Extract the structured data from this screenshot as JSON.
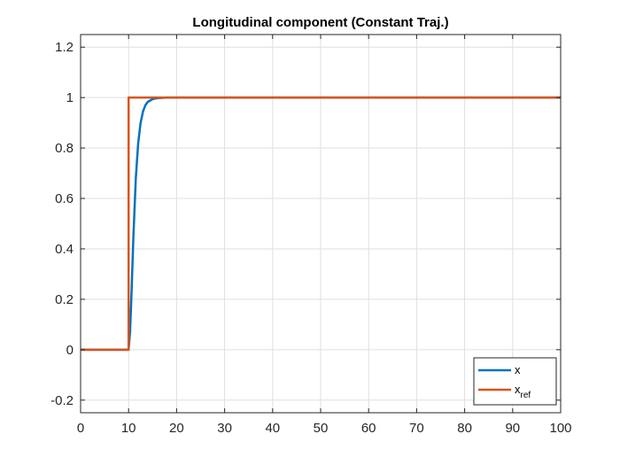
{
  "chart_data": {
    "type": "line",
    "title": "Longitudinal component (Constant Traj.)",
    "xlabel": "",
    "ylabel": "",
    "xlim": [
      0,
      100
    ],
    "ylim": [
      -0.25,
      1.25
    ],
    "x_ticks": [
      "0",
      "10",
      "20",
      "30",
      "40",
      "50",
      "60",
      "70",
      "80",
      "90",
      "100"
    ],
    "y_ticks": [
      "-0.2",
      "0",
      "0.2",
      "0.4",
      "0.6",
      "0.8",
      "1",
      "1.2"
    ],
    "x_tick_values": [
      0,
      10,
      20,
      30,
      40,
      50,
      60,
      70,
      80,
      90,
      100
    ],
    "y_tick_values": [
      -0.2,
      0,
      0.2,
      0.4,
      0.6,
      0.8,
      1,
      1.2
    ],
    "grid": true,
    "legend_position": "bottom-right",
    "series": [
      {
        "name": "x",
        "color": "#0072bd",
        "x": [
          0,
          10,
          10.3,
          10.6,
          11,
          11.5,
          12,
          12.5,
          13,
          13.5,
          14,
          15,
          16,
          17,
          18,
          20,
          30,
          50,
          100
        ],
        "y": [
          0,
          0,
          0.07,
          0.22,
          0.45,
          0.68,
          0.82,
          0.9,
          0.945,
          0.97,
          0.983,
          0.994,
          0.998,
          0.999,
          1,
          1,
          1,
          1,
          1
        ]
      },
      {
        "name": "x",
        "name_sub": "ref",
        "color": "#d95319",
        "x": [
          0,
          10,
          10,
          100
        ],
        "y": [
          0,
          0,
          1,
          1
        ]
      }
    ]
  }
}
